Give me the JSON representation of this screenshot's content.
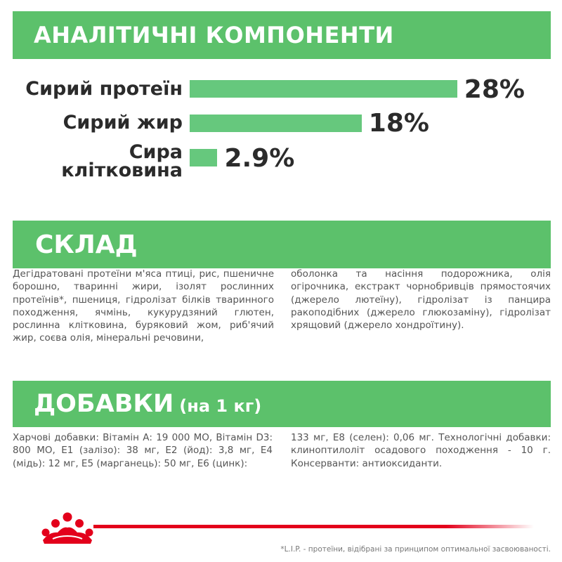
{
  "colors": {
    "banner_green": "#5cc16b",
    "bar_green": "#66c87d",
    "label_dark": "#2b2b2b",
    "body_text": "#555555",
    "brand_red": "#e3001b"
  },
  "analytical": {
    "title": "АНАЛІТИЧНІ КОМПОНЕНТИ",
    "items": [
      {
        "label": "Сирий протеїн",
        "value_text": "28%",
        "value": 28
      },
      {
        "label": "Сирий жир",
        "value_text": "18%",
        "value": 18
      },
      {
        "label_line1": "Сира",
        "label_line2": "клітковина",
        "value_text": "2.9%",
        "value": 2.9
      }
    ]
  },
  "composition": {
    "title": "СКЛАД",
    "col1": "Дегідратовані протеїни м'яса птиці, рис, пшеничне борошно, тваринні жири, ізолят рослинних протеїнів*, пшениця, гідролізат білків тваринного походження, ячмінь, кукурудзяний глютен, рослинна клітковина, буряковий жом, риб'ячий жир, соєва олія, мінеральні речовини,",
    "col2": "оболонка та насіння подорожника, олія огірочника, екстракт чорнобривців прямостоячих (джерело лютеїну), гідролізат із панцира ракоподібних (джерело глюкозаміну), гідролізат хрящовий (джерело хондроїтину)."
  },
  "additives": {
    "title": "ДОБАВКИ",
    "unit": "(на 1 кг)",
    "col1": "Харчові добавки: Вітамін А: 19 000 МО, Вітамін D3: 800 МО, Е1 (залізо): 38 мг, Е2 (йод): 3,8 мг, Е4 (мідь): 12 мг, Е5 (марганець): 50 мг, Е6 (цинк):",
    "col2": "133 мг, Е8 (селен): 0,06 мг. Технологічні добавки: клиноптилоліт осадового походження - 10 г. Консерванти: антиоксиданти."
  },
  "brand": {
    "logo_icon": "royal-crown-icon"
  },
  "footnote": "*L.I.P. - протеїни, відібрані за принципом оптимальної засвоюваності."
}
